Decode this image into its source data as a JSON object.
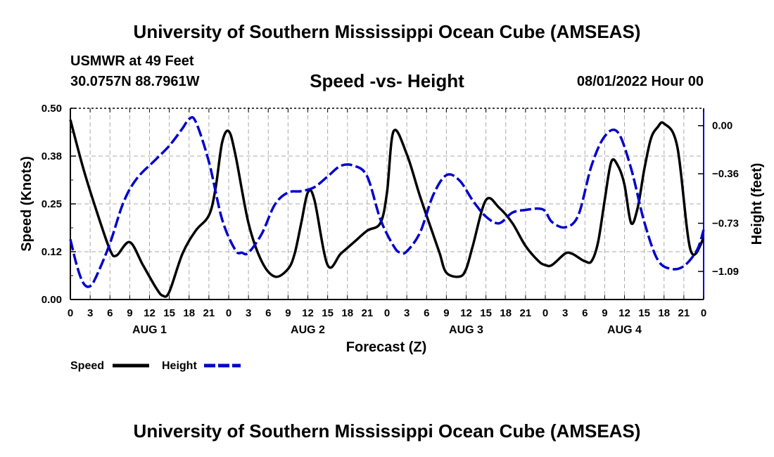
{
  "page": {
    "title": "University of Southern Mississippi Ocean Cube (AMSEAS)",
    "footer_title": "University of Southern Mississippi Ocean Cube (AMSEAS)",
    "station": "USMWR at 49 Feet",
    "coordinates": "30.0757N  88.7961W",
    "subtitle": "Speed -vs- Height",
    "datetime": "08/01/2022 Hour 00"
  },
  "chart_data": {
    "type": "line",
    "title": "Speed -vs- Height",
    "xlabel": "Forecast (Z)",
    "ylabel": "Speed (Knots)",
    "y2label": "Height (feet)",
    "xlim": [
      0,
      96
    ],
    "ylim": [
      0,
      0.5
    ],
    "y2lim": [
      -1.3,
      0.13
    ],
    "x_tick_labels": [
      "0",
      "3",
      "6",
      "9",
      "12",
      "15",
      "18",
      "21",
      "0",
      "3",
      "6",
      "9",
      "12",
      "15",
      "18",
      "21",
      "0",
      "3",
      "6",
      "9",
      "12",
      "15",
      "18",
      "21",
      "0",
      "3",
      "6",
      "9",
      "12",
      "15",
      "18",
      "21",
      "0"
    ],
    "y_ticks": [
      "0.00",
      "0.12",
      "0.25",
      "0.38",
      "0.50"
    ],
    "y2_ticks": [
      "0.00",
      "−0.36",
      "−0.73",
      "−1.09"
    ],
    "y2_tick_values": [
      0.0,
      -0.36,
      -0.73,
      -1.09
    ],
    "day_labels": [
      "AUG 1",
      "AUG 2",
      "AUG 3",
      "AUG 4"
    ],
    "grid": true,
    "legend": [
      {
        "name": "Speed",
        "color": "#000000",
        "style": "solid"
      },
      {
        "name": "Height",
        "color": "#0000cc",
        "style": "dashed"
      }
    ],
    "series": [
      {
        "name": "Speed",
        "axis": "left",
        "color": "#000000",
        "x": [
          0,
          2,
          4,
          6,
          7,
          9,
          11,
          13,
          14,
          15,
          17,
          19,
          21,
          22,
          23,
          24,
          25,
          27,
          29,
          31,
          33,
          34,
          35,
          36,
          37,
          39,
          41,
          43,
          45,
          47,
          48,
          49,
          51,
          53,
          55,
          56,
          57,
          59,
          60,
          61,
          63,
          65,
          67,
          69,
          71,
          72,
          73,
          75,
          76,
          77,
          78,
          79,
          80,
          81,
          82,
          83,
          84,
          85,
          86,
          87,
          88,
          89,
          90,
          92,
          94,
          96
        ],
        "y": [
          0.47,
          0.34,
          0.23,
          0.13,
          0.115,
          0.15,
          0.09,
          0.03,
          0.01,
          0.02,
          0.12,
          0.18,
          0.22,
          0.29,
          0.41,
          0.44,
          0.38,
          0.2,
          0.1,
          0.06,
          0.08,
          0.12,
          0.2,
          0.28,
          0.26,
          0.09,
          0.12,
          0.15,
          0.18,
          0.2,
          0.28,
          0.44,
          0.38,
          0.27,
          0.17,
          0.12,
          0.07,
          0.06,
          0.08,
          0.14,
          0.26,
          0.24,
          0.2,
          0.14,
          0.1,
          0.09,
          0.09,
          0.12,
          0.12,
          0.11,
          0.1,
          0.1,
          0.15,
          0.26,
          0.36,
          0.35,
          0.3,
          0.2,
          0.24,
          0.34,
          0.42,
          0.45,
          0.46,
          0.4,
          0.13,
          0.16
        ]
      },
      {
        "name": "Height",
        "axis": "right",
        "color": "#0000cc",
        "x": [
          0,
          1,
          2,
          3,
          4,
          6,
          8,
          10,
          13,
          15,
          17,
          18,
          19,
          21,
          23,
          25,
          26,
          27,
          29,
          31,
          33,
          35,
          37,
          39,
          41,
          43,
          45,
          47,
          49,
          50,
          51,
          53,
          55,
          57,
          59,
          61,
          63,
          65,
          67,
          69,
          71,
          72,
          73,
          75,
          77,
          79,
          81,
          83,
          85,
          87,
          89,
          91,
          93,
          95,
          96
        ],
        "y": [
          -0.85,
          -1.05,
          -1.18,
          -1.2,
          -1.12,
          -0.88,
          -0.58,
          -0.4,
          -0.25,
          -0.15,
          -0.02,
          0.05,
          0.03,
          -0.27,
          -0.7,
          -0.93,
          -0.95,
          -0.95,
          -0.81,
          -0.59,
          -0.5,
          -0.49,
          -0.46,
          -0.38,
          -0.3,
          -0.3,
          -0.38,
          -0.7,
          -0.9,
          -0.95,
          -0.94,
          -0.8,
          -0.52,
          -0.37,
          -0.41,
          -0.56,
          -0.68,
          -0.73,
          -0.65,
          -0.63,
          -0.62,
          -0.64,
          -0.72,
          -0.76,
          -0.67,
          -0.3,
          -0.08,
          -0.05,
          -0.32,
          -0.72,
          -1.0,
          -1.07,
          -1.05,
          -0.93,
          -0.78
        ]
      }
    ]
  }
}
